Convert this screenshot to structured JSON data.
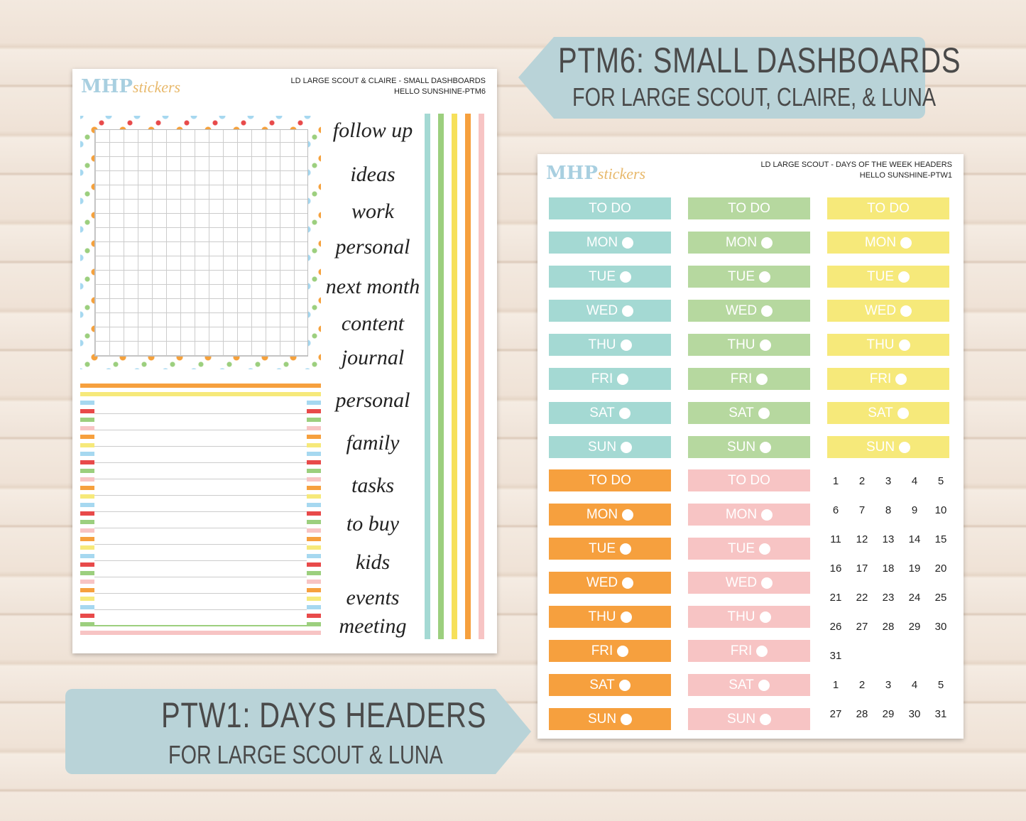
{
  "banner_top": {
    "title": "PTM6: SMALL DASHBOARDS",
    "subtitle": "FOR LARGE SCOUT, CLAIRE, & LUNA"
  },
  "banner_bottom": {
    "title": "PTW1: DAYS HEADERS",
    "subtitle": "FOR LARGE SCOUT & LUNA"
  },
  "sheet_left": {
    "logo": {
      "brand": "MHP",
      "script": "stickers"
    },
    "header": [
      "LD LARGE SCOUT & CLAIRE - SMALL DASHBOARDS",
      "HELLO SUNSHINE-PTM6"
    ],
    "words": [
      "follow up",
      "ideas",
      "work",
      "personal",
      "next month",
      "content",
      "journal",
      "personal",
      "family",
      "tasks",
      "to buy",
      "kids",
      "events",
      "meeting"
    ]
  },
  "sheet_right": {
    "logo": {
      "brand": "MHP",
      "script": "stickers"
    },
    "header": [
      "LD LARGE SCOUT - DAYS OF THE WEEK HEADERS",
      "HELLO SUNSHINE-PTW1"
    ],
    "blocks": [
      {
        "color": "#a4d9d3",
        "labels": [
          "TO DO",
          "MON",
          "TUE",
          "WED",
          "THU",
          "FRI",
          "SAT",
          "SUN"
        ]
      },
      {
        "color": "#b6d89f",
        "labels": [
          "TO DO",
          "MON",
          "TUE",
          "WED",
          "THU",
          "FRI",
          "SAT",
          "SUN"
        ]
      },
      {
        "color": "#f6e97a",
        "labels": [
          "TO DO",
          "MON",
          "TUE",
          "WED",
          "THU",
          "FRI",
          "SAT",
          "SUN"
        ]
      },
      {
        "color": "#f6a03e",
        "labels": [
          "TO DO",
          "MON",
          "TUE",
          "WED",
          "THU",
          "FRI",
          "SAT",
          "SUN"
        ]
      },
      {
        "color": "#f7c4c4",
        "labels": [
          "TO DO",
          "MON",
          "TUE",
          "WED",
          "THU",
          "FRI",
          "SAT",
          "SUN"
        ]
      }
    ],
    "calendar": [
      [
        1,
        2,
        3,
        4,
        5
      ],
      [
        6,
        7,
        8,
        9,
        10
      ],
      [
        11,
        12,
        13,
        14,
        15
      ],
      [
        16,
        17,
        18,
        19,
        20
      ],
      [
        21,
        22,
        23,
        24,
        25
      ],
      [
        26,
        27,
        28,
        29,
        30
      ],
      [
        31
      ],
      [
        1,
        2,
        3,
        4,
        5
      ],
      [
        27,
        28,
        29,
        30,
        31
      ]
    ]
  }
}
